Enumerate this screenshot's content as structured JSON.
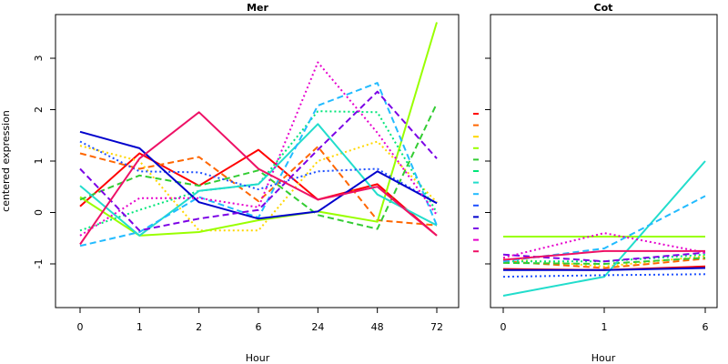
{
  "chart_data": [
    {
      "type": "line",
      "title": "Mer",
      "xlabel": "Hour",
      "ylabel": "centered expression",
      "x": [
        "0",
        "1",
        "2",
        "6",
        "24",
        "48",
        "72"
      ],
      "yticks": [
        "-1",
        "0",
        "1",
        "2",
        "3"
      ],
      "ylim": [
        -1.85,
        3.85
      ],
      "series": [
        {
          "color": "#FF0000",
          "dash": "solid",
          "values": [
            0.12,
            1.15,
            0.52,
            1.22,
            0.25,
            0.55,
            -0.45
          ]
        },
        {
          "color": "#FF6600",
          "dash": "dashed",
          "values": [
            1.15,
            0.85,
            1.08,
            0.22,
            1.28,
            -0.15,
            -0.25
          ]
        },
        {
          "color": "#FFD700",
          "dash": "dotted",
          "values": [
            1.3,
            1.0,
            -0.35,
            -0.35,
            1.0,
            1.38,
            0.2
          ]
        },
        {
          "color": "#99FF00",
          "dash": "solid",
          "values": [
            0.3,
            -0.45,
            -0.38,
            -0.15,
            0.02,
            -0.18,
            3.7
          ]
        },
        {
          "color": "#33CC33",
          "dash": "dashed",
          "values": [
            0.25,
            0.72,
            0.52,
            0.82,
            -0.05,
            -0.32,
            2.12
          ]
        },
        {
          "color": "#00E57A",
          "dash": "dotted",
          "values": [
            -0.35,
            0.05,
            0.42,
            0.55,
            1.97,
            1.95,
            0.0
          ]
        },
        {
          "color": "#22DDCC",
          "dash": "solid",
          "values": [
            0.52,
            -0.45,
            0.42,
            0.55,
            1.72,
            0.35,
            -0.25
          ]
        },
        {
          "color": "#22BBFF",
          "dash": "dashed",
          "values": [
            -0.65,
            -0.38,
            0.3,
            -0.1,
            2.08,
            2.52,
            -0.25
          ]
        },
        {
          "color": "#1E50FF",
          "dash": "dotted",
          "values": [
            1.38,
            0.8,
            0.78,
            0.45,
            0.8,
            0.85,
            0.18
          ]
        },
        {
          "color": "#0000CC",
          "dash": "solid",
          "values": [
            1.57,
            1.25,
            0.2,
            -0.12,
            0.02,
            0.8,
            0.18
          ]
        },
        {
          "color": "#7B00E6",
          "dash": "dashed",
          "values": [
            0.85,
            -0.35,
            -0.12,
            0.05,
            1.22,
            2.35,
            1.05
          ]
        },
        {
          "color": "#E600CC",
          "dash": "dotted",
          "values": [
            -0.45,
            0.28,
            0.28,
            0.1,
            2.92,
            1.55,
            -0.05
          ]
        },
        {
          "color": "#EE1166",
          "dash": "solid",
          "values": [
            -0.62,
            1.05,
            1.95,
            0.85,
            0.25,
            0.5,
            -0.45
          ]
        }
      ]
    },
    {
      "type": "line",
      "title": "Cot",
      "xlabel": "Hour",
      "x": [
        "0",
        "1",
        "6"
      ],
      "ylim": [
        -1.85,
        3.85
      ],
      "series": [
        {
          "color": "#FF0000",
          "dash": "solid",
          "values": [
            -1.1,
            -1.12,
            -1.05
          ]
        },
        {
          "color": "#FF6600",
          "dash": "dashed",
          "values": [
            -0.95,
            -1.08,
            -0.9
          ]
        },
        {
          "color": "#FFD700",
          "dash": "dotted",
          "values": [
            -0.9,
            -1.05,
            -0.85
          ]
        },
        {
          "color": "#99FF00",
          "dash": "solid",
          "values": [
            -0.47,
            -0.47,
            -0.47
          ]
        },
        {
          "color": "#33CC33",
          "dash": "dashed",
          "values": [
            -0.98,
            -1.0,
            -0.88
          ]
        },
        {
          "color": "#00E57A",
          "dash": "dotted",
          "values": [
            -0.95,
            -0.95,
            -0.82
          ]
        },
        {
          "color": "#22DDCC",
          "dash": "solid",
          "values": [
            -1.62,
            -1.25,
            1.0
          ]
        },
        {
          "color": "#22BBFF",
          "dash": "dashed",
          "values": [
            -0.95,
            -0.7,
            0.32
          ]
        },
        {
          "color": "#1E50FF",
          "dash": "dotted",
          "values": [
            -1.25,
            -1.22,
            -1.2
          ]
        },
        {
          "color": "#0000CC",
          "dash": "solid",
          "values": [
            -1.12,
            -1.12,
            -1.08
          ]
        },
        {
          "color": "#7B00E6",
          "dash": "dashed",
          "values": [
            -0.82,
            -0.95,
            -0.78
          ]
        },
        {
          "color": "#E600CC",
          "dash": "dotted",
          "values": [
            -0.88,
            -0.4,
            -0.78
          ]
        },
        {
          "color": "#EE1166",
          "dash": "solid",
          "values": [
            -0.92,
            -0.75,
            -0.75
          ]
        }
      ]
    }
  ],
  "legend_markers": [
    "#FF0000",
    "#FF6600",
    "#FFD700",
    "#99FF00",
    "#33CC33",
    "#00E57A",
    "#22DDCC",
    "#22BBFF",
    "#1E50FF",
    "#0000CC",
    "#7B00E6",
    "#E600CC",
    "#EE1166"
  ]
}
